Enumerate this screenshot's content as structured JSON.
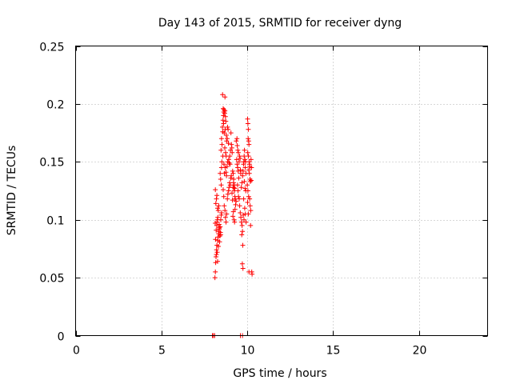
{
  "chart_data": {
    "type": "scatter",
    "title": "Day 143 of 2015, SRMTID for receiver dyng",
    "xlabel": "GPS time / hours",
    "ylabel": "SRMTID / TECUs",
    "xlim": [
      0,
      24
    ],
    "ylim": [
      0,
      0.25
    ],
    "xticks": [
      0,
      5,
      10,
      15,
      20
    ],
    "xtick_labels": [
      "0",
      "5",
      "10",
      "15",
      "20"
    ],
    "yticks": [
      0,
      0.05,
      0.1,
      0.15,
      0.2,
      0.25
    ],
    "ytick_labels": [
      "0",
      "0.05",
      "0.1",
      "0.15",
      "0.2",
      "0.25"
    ],
    "grid": true,
    "marker": "+",
    "color": "#ff0000",
    "series": [
      {
        "name": "SRMTID",
        "points": [
          [
            7.97,
            0
          ],
          [
            8.03,
            0
          ],
          [
            8.1,
            0
          ],
          [
            9.6,
            0
          ],
          [
            9.72,
            0
          ],
          [
            8.12,
            0.05
          ],
          [
            8.14,
            0.055
          ],
          [
            8.16,
            0.063
          ],
          [
            8.18,
            0.068
          ],
          [
            8.2,
            0.07
          ],
          [
            8.21,
            0.074
          ],
          [
            8.23,
            0.078
          ],
          [
            8.25,
            0.072
          ],
          [
            8.27,
            0.064
          ],
          [
            8.29,
            0.082
          ],
          [
            8.15,
            0.083
          ],
          [
            8.3,
            0.085
          ],
          [
            8.33,
            0.088
          ],
          [
            8.35,
            0.09
          ],
          [
            8.37,
            0.092
          ],
          [
            8.4,
            0.086
          ],
          [
            8.42,
            0.094
          ],
          [
            8.19,
            0.091
          ],
          [
            8.22,
            0.095
          ],
          [
            8.24,
            0.098
          ],
          [
            8.26,
            0.1
          ],
          [
            8.28,
            0.102
          ],
          [
            8.31,
            0.108
          ],
          [
            8.34,
            0.112
          ],
          [
            8.17,
            0.114
          ],
          [
            8.2,
            0.118
          ],
          [
            8.23,
            0.121
          ],
          [
            8.14,
            0.126
          ],
          [
            8.36,
            0.096
          ],
          [
            8.38,
            0.093
          ],
          [
            8.44,
            0.089
          ],
          [
            8.46,
            0.1
          ],
          [
            8.48,
            0.104
          ],
          [
            8.5,
            0.106
          ],
          [
            8.27,
            0.11
          ],
          [
            8.13,
            0.097
          ],
          [
            8.32,
            0.077
          ],
          [
            8.39,
            0.081
          ],
          [
            8.45,
            0.087
          ],
          [
            8.42,
            0.14
          ],
          [
            8.45,
            0.135
          ],
          [
            8.48,
            0.13
          ],
          [
            8.5,
            0.145
          ],
          [
            8.52,
            0.15
          ],
          [
            8.47,
            0.16
          ],
          [
            8.5,
            0.17
          ],
          [
            8.53,
            0.165
          ],
          [
            8.55,
            0.18
          ],
          [
            8.57,
            0.176
          ],
          [
            8.59,
            0.186
          ],
          [
            8.61,
            0.19
          ],
          [
            8.63,
            0.193
          ],
          [
            8.6,
            0.196
          ],
          [
            8.65,
            0.195
          ],
          [
            8.68,
            0.192
          ],
          [
            8.7,
            0.194
          ],
          [
            8.73,
            0.189
          ],
          [
            8.56,
            0.208
          ],
          [
            8.7,
            0.206
          ],
          [
            8.75,
            0.185
          ],
          [
            8.72,
            0.178
          ],
          [
            8.78,
            0.173
          ],
          [
            8.8,
            0.168
          ],
          [
            8.62,
            0.183
          ],
          [
            8.66,
            0.175
          ],
          [
            8.69,
            0.162
          ],
          [
            8.74,
            0.158
          ],
          [
            8.77,
            0.155
          ],
          [
            8.83,
            0.17
          ],
          [
            8.85,
            0.18
          ],
          [
            8.88,
            0.178
          ],
          [
            8.9,
            0.166
          ],
          [
            8.58,
            0.155
          ],
          [
            8.64,
            0.148
          ],
          [
            8.67,
            0.14
          ],
          [
            8.71,
            0.145
          ],
          [
            8.76,
            0.141
          ],
          [
            8.79,
            0.138
          ],
          [
            8.82,
            0.146
          ],
          [
            8.86,
            0.15
          ],
          [
            8.92,
            0.152
          ],
          [
            8.95,
            0.149
          ],
          [
            8.98,
            0.155
          ],
          [
            9.0,
            0.148
          ],
          [
            8.6,
            0.126
          ],
          [
            8.63,
            0.12
          ],
          [
            8.66,
            0.112
          ],
          [
            8.7,
            0.108
          ],
          [
            8.73,
            0.102
          ],
          [
            8.76,
            0.098
          ],
          [
            8.8,
            0.105
          ],
          [
            8.84,
            0.118
          ],
          [
            8.87,
            0.122
          ],
          [
            8.91,
            0.125
          ],
          [
            8.94,
            0.128
          ],
          [
            8.97,
            0.132
          ],
          [
            9.01,
            0.13
          ],
          [
            9.04,
            0.136
          ],
          [
            9.07,
            0.138
          ],
          [
            9.02,
            0.16
          ],
          [
            9.05,
            0.175
          ],
          [
            9.08,
            0.165
          ],
          [
            9.1,
            0.162
          ],
          [
            9.12,
            0.158
          ],
          [
            9.15,
            0.142
          ],
          [
            9.18,
            0.14
          ],
          [
            9.2,
            0.132
          ],
          [
            9.22,
            0.128
          ],
          [
            9.25,
            0.125
          ],
          [
            9.28,
            0.12
          ],
          [
            9.3,
            0.118
          ],
          [
            9.32,
            0.113
          ],
          [
            9.35,
            0.116
          ],
          [
            9.11,
            0.123
          ],
          [
            9.14,
            0.117
          ],
          [
            9.17,
            0.128
          ],
          [
            9.21,
            0.135
          ],
          [
            9.24,
            0.13
          ],
          [
            9.27,
            0.127
          ],
          [
            9.16,
            0.103
          ],
          [
            9.19,
            0.107
          ],
          [
            9.23,
            0.1
          ],
          [
            9.26,
            0.098
          ],
          [
            9.29,
            0.109
          ],
          [
            9.36,
            0.168
          ],
          [
            9.4,
            0.17
          ],
          [
            9.42,
            0.164
          ],
          [
            9.45,
            0.16
          ],
          [
            9.48,
            0.158
          ],
          [
            9.38,
            0.152
          ],
          [
            9.41,
            0.148
          ],
          [
            9.44,
            0.145
          ],
          [
            9.47,
            0.142
          ],
          [
            9.5,
            0.136
          ],
          [
            9.52,
            0.15
          ],
          [
            9.55,
            0.155
          ],
          [
            9.58,
            0.153
          ],
          [
            9.6,
            0.143
          ],
          [
            9.62,
            0.14
          ],
          [
            9.43,
            0.13
          ],
          [
            9.46,
            0.125
          ],
          [
            9.49,
            0.12
          ],
          [
            9.53,
            0.118
          ],
          [
            9.56,
            0.112
          ],
          [
            9.59,
            0.106
          ],
          [
            9.63,
            0.102
          ],
          [
            9.66,
            0.098
          ],
          [
            9.7,
            0.095
          ],
          [
            9.72,
            0.09
          ],
          [
            9.68,
            0.087
          ],
          [
            9.74,
            0.078
          ],
          [
            9.71,
            0.062
          ],
          [
            9.75,
            0.058
          ],
          [
            9.65,
            0.128
          ],
          [
            9.69,
            0.132
          ],
          [
            9.73,
            0.138
          ],
          [
            9.76,
            0.142
          ],
          [
            9.78,
            0.148
          ],
          [
            9.8,
            0.15
          ],
          [
            9.82,
            0.155
          ],
          [
            9.84,
            0.16
          ],
          [
            9.86,
            0.152
          ],
          [
            9.88,
            0.145
          ],
          [
            9.9,
            0.15
          ],
          [
            9.83,
            0.133
          ],
          [
            9.87,
            0.127
          ],
          [
            9.91,
            0.125
          ],
          [
            9.79,
            0.118
          ],
          [
            9.85,
            0.11
          ],
          [
            9.89,
            0.105
          ],
          [
            9.81,
            0.1
          ],
          [
            9.93,
            0.098
          ],
          [
            9.77,
            0.104
          ],
          [
            9.92,
            0.14
          ],
          [
            10.02,
            0.187
          ],
          [
            10.04,
            0.183
          ],
          [
            10.06,
            0.178
          ],
          [
            10.05,
            0.17
          ],
          [
            10.08,
            0.168
          ],
          [
            10.1,
            0.165
          ],
          [
            10.03,
            0.158
          ],
          [
            10.07,
            0.155
          ],
          [
            10.11,
            0.15
          ],
          [
            10.13,
            0.148
          ],
          [
            10.15,
            0.146
          ],
          [
            10.09,
            0.143
          ],
          [
            10.12,
            0.14
          ],
          [
            10.16,
            0.135
          ],
          [
            10.18,
            0.133
          ],
          [
            10.0,
            0.13
          ],
          [
            10.04,
            0.125
          ],
          [
            10.08,
            0.12
          ],
          [
            10.14,
            0.118
          ],
          [
            10.17,
            0.112
          ],
          [
            10.2,
            0.108
          ],
          [
            10.02,
            0.115
          ],
          [
            10.06,
            0.105
          ],
          [
            10.19,
            0.095
          ],
          [
            10.22,
            0.152
          ],
          [
            10.25,
            0.145
          ],
          [
            10.23,
            0.134
          ],
          [
            10.26,
            0.055
          ],
          [
            10.28,
            0.053
          ],
          [
            10.1,
            0.055
          ]
        ]
      }
    ]
  }
}
